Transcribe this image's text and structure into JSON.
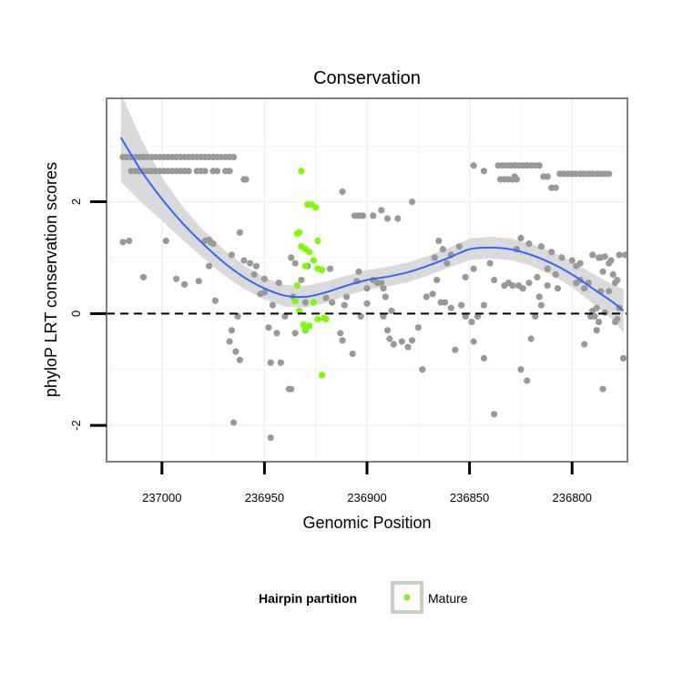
{
  "chart_data": {
    "type": "scatter",
    "title": "Conservation",
    "xlabel": "Genomic Position",
    "ylabel": "phyloP LRT conservation scores",
    "x_reversed": true,
    "xlim": [
      237027,
      236773
    ],
    "ylim": [
      -2.65,
      3.85
    ],
    "x_ticks": [
      237000,
      236950,
      236900,
      236850,
      236800
    ],
    "x_tick_labels": [
      "237000",
      "236950",
      "236900",
      "236850",
      "236800"
    ],
    "y_ticks": [
      -2,
      0,
      2
    ],
    "y_tick_labels": [
      "-2",
      "0",
      "2"
    ],
    "grid": true,
    "reference_line": {
      "y": 0,
      "style": "dashed"
    },
    "legend": {
      "title": "Hairpin partition",
      "entries": [
        {
          "label": "Mature",
          "color": "#7cfc00"
        }
      ],
      "placement": "bottom"
    },
    "colors": {
      "other": "#999999",
      "mature": "#7cfc00",
      "smooth": "#3366ff",
      "band": "#d3d3d3"
    },
    "series": [
      {
        "role": "other",
        "points": [
          [
            237019,
            2.8
          ],
          [
            237017,
            2.8
          ],
          [
            237015,
            2.8
          ],
          [
            237013,
            2.8
          ],
          [
            237011,
            2.8
          ],
          [
            237009,
            2.8
          ],
          [
            237007,
            2.8
          ],
          [
            237005,
            2.8
          ],
          [
            237003,
            2.8
          ],
          [
            237001,
            2.8
          ],
          [
            236999,
            2.8
          ],
          [
            236997,
            2.8
          ],
          [
            236995,
            2.8
          ],
          [
            236993,
            2.8
          ],
          [
            236991,
            2.8
          ],
          [
            236989,
            2.8
          ],
          [
            236987,
            2.8
          ],
          [
            236985,
            2.8
          ],
          [
            236983,
            2.8
          ],
          [
            236981,
            2.8
          ],
          [
            236979,
            2.8
          ],
          [
            236977,
            2.8
          ],
          [
            236975,
            2.8
          ],
          [
            236973,
            2.8
          ],
          [
            236971,
            2.8
          ],
          [
            236969,
            2.8
          ],
          [
            236967,
            2.8
          ],
          [
            236965,
            2.8
          ],
          [
            237015,
            2.55
          ],
          [
            237013,
            2.55
          ],
          [
            237011,
            2.55
          ],
          [
            237009,
            2.55
          ],
          [
            237007,
            2.55
          ],
          [
            237005,
            2.55
          ],
          [
            237003,
            2.55
          ],
          [
            237001,
            2.55
          ],
          [
            236999,
            2.55
          ],
          [
            236997,
            2.55
          ],
          [
            236995,
            2.55
          ],
          [
            236993,
            2.55
          ],
          [
            236991,
            2.55
          ],
          [
            236989,
            2.55
          ],
          [
            236987,
            2.55
          ],
          [
            236983,
            2.55
          ],
          [
            236981,
            2.55
          ],
          [
            236979,
            2.55
          ],
          [
            236975,
            2.55
          ],
          [
            236973,
            2.55
          ],
          [
            236969,
            2.55
          ],
          [
            236967,
            2.55
          ],
          [
            236960,
            2.4
          ],
          [
            236959,
            2.4
          ],
          [
            237019,
            1.28
          ],
          [
            237016,
            1.3
          ],
          [
            236998,
            1.3
          ],
          [
            236979,
            1.3
          ],
          [
            236976,
            1.27
          ],
          [
            236977,
            1.32
          ],
          [
            236962,
            1.45
          ],
          [
            236975,
            1.25
          ],
          [
            237009,
            0.65
          ],
          [
            236993,
            0.62
          ],
          [
            236989,
            0.52
          ],
          [
            236982,
            0.58
          ],
          [
            236977,
            0.85
          ],
          [
            236966,
            1.05
          ],
          [
            236960,
            0.95
          ],
          [
            236955,
            0.7
          ],
          [
            236950,
            0.62
          ],
          [
            236954,
            0.85
          ],
          [
            236957,
            0.9
          ],
          [
            236974,
            0.23
          ],
          [
            236937,
            1.0
          ],
          [
            236935,
            0.9
          ],
          [
            236932,
            0.6
          ],
          [
            236929,
            0.85
          ],
          [
            236950,
            0.38
          ],
          [
            236946,
            0.15
          ],
          [
            236948,
            -0.25
          ],
          [
            236944,
            -0.35
          ],
          [
            236940,
            -0.05
          ],
          [
            236952,
            0.35
          ],
          [
            236963,
            -0.05
          ],
          [
            236964,
            -0.68
          ],
          [
            236962,
            -0.83
          ],
          [
            236967,
            -0.5
          ],
          [
            236966,
            -0.3
          ],
          [
            236947,
            -0.88
          ],
          [
            236942,
            -0.88
          ],
          [
            236938,
            -1.35
          ],
          [
            236937,
            -1.35
          ],
          [
            236947,
            -2.22
          ],
          [
            236965,
            -1.95
          ],
          [
            236943,
            0.55
          ],
          [
            236936,
            0.3
          ],
          [
            236935,
            -0.35
          ],
          [
            236930,
            0.2
          ],
          [
            236930,
            -0.3
          ],
          [
            236920,
            0.28
          ],
          [
            236918,
            0.8
          ],
          [
            236917,
            0.2
          ],
          [
            236913,
            -0.35
          ],
          [
            236912,
            -0.48
          ],
          [
            236911,
            0.15
          ],
          [
            236907,
            -0.72
          ],
          [
            236903,
            -0.05
          ],
          [
            236900,
            0.18
          ],
          [
            236897,
            0.6
          ],
          [
            236895,
            0.55
          ],
          [
            236893,
            0.55
          ],
          [
            236892,
            0.45
          ],
          [
            236891,
            0.3
          ],
          [
            236888,
            0.05
          ],
          [
            236910,
            0.3
          ],
          [
            236905,
            0.58
          ],
          [
            236904,
            0.75
          ],
          [
            236900,
            0.45
          ],
          [
            236912,
            2.18
          ],
          [
            236906,
            1.75
          ],
          [
            236904,
            1.75
          ],
          [
            236902,
            1.75
          ],
          [
            236897,
            1.75
          ],
          [
            236893,
            1.85
          ],
          [
            236890,
            1.7
          ],
          [
            236885,
            1.7
          ],
          [
            236878,
            2.0
          ],
          [
            236892,
            -0.05
          ],
          [
            236890,
            -0.3
          ],
          [
            236889,
            -0.45
          ],
          [
            236887,
            -0.55
          ],
          [
            236883,
            -0.5
          ],
          [
            236880,
            -0.6
          ],
          [
            236878,
            -0.48
          ],
          [
            236875,
            -0.25
          ],
          [
            236873,
            -1.0
          ],
          [
            236871,
            0.3
          ],
          [
            236868,
            0.35
          ],
          [
            236866,
            0.6
          ],
          [
            236864,
            0.2
          ],
          [
            236862,
            0.2
          ],
          [
            236859,
            0.1
          ],
          [
            236857,
            -0.65
          ],
          [
            236854,
            0.15
          ],
          [
            236852,
            -0.05
          ],
          [
            236849,
            -0.15
          ],
          [
            236848,
            -0.5
          ],
          [
            236846,
            -0.05
          ],
          [
            236843,
            0.15
          ],
          [
            236840,
            0.9
          ],
          [
            236838,
            0.6
          ],
          [
            236867,
            1.0
          ],
          [
            236865,
            1.3
          ],
          [
            236863,
            1.15
          ],
          [
            236861,
            0.9
          ],
          [
            236859,
            1.05
          ],
          [
            236855,
            1.2
          ],
          [
            236852,
            0.65
          ],
          [
            236848,
            0.8
          ],
          [
            236848,
            2.65
          ],
          [
            236843,
            2.55
          ],
          [
            236836,
            2.65
          ],
          [
            236834,
            2.65
          ],
          [
            236832,
            2.65
          ],
          [
            236830,
            2.65
          ],
          [
            236828,
            2.65
          ],
          [
            236826,
            2.65
          ],
          [
            236824,
            2.65
          ],
          [
            236835,
            2.4
          ],
          [
            236833,
            2.4
          ],
          [
            236831,
            2.4
          ],
          [
            236829,
            2.4
          ],
          [
            236827,
            2.4
          ],
          [
            236843,
            -0.8
          ],
          [
            236838,
            -1.8
          ],
          [
            236825,
            -1.0
          ],
          [
            236822,
            -1.2
          ],
          [
            236824,
            0.45
          ],
          [
            236821,
            0.55
          ],
          [
            236817,
            0.65
          ],
          [
            236812,
            0.8
          ],
          [
            236808,
            0.7
          ],
          [
            236833,
            0.5
          ],
          [
            236831,
            0.55
          ],
          [
            236829,
            0.5
          ],
          [
            236826,
            0.5
          ],
          [
            236824,
            0.45
          ],
          [
            236818,
            -0.05
          ],
          [
            236816,
            0.3
          ],
          [
            236812,
            0.5
          ],
          [
            236807,
            0.45
          ],
          [
            236820,
            -0.45
          ],
          [
            236815,
            0.15
          ],
          [
            236798,
            0.55
          ],
          [
            236796,
            0.6
          ],
          [
            236794,
            0.45
          ],
          [
            236790,
            0.05
          ],
          [
            236788,
            -0.3
          ],
          [
            236785,
            0.75
          ],
          [
            236827,
            1.15
          ],
          [
            236825,
            1.35
          ],
          [
            236821,
            1.25
          ],
          [
            236815,
            1.2
          ],
          [
            236810,
            1.1
          ],
          [
            236805,
            1.0
          ],
          [
            236800,
            0.95
          ],
          [
            236798,
            0.85
          ],
          [
            236796,
            0.9
          ],
          [
            236790,
            1.05
          ],
          [
            236787,
            1.0
          ],
          [
            236782,
            0.4
          ],
          [
            236780,
            0.7
          ],
          [
            236777,
            1.05
          ],
          [
            236828,
            2.45
          ],
          [
            236822,
            2.65
          ],
          [
            236820,
            2.65
          ],
          [
            236818,
            2.65
          ],
          [
            236816,
            2.65
          ],
          [
            236814,
            2.45
          ],
          [
            236812,
            2.45
          ],
          [
            236810,
            2.25
          ],
          [
            236808,
            2.25
          ],
          [
            236806,
            2.5
          ],
          [
            236804,
            2.5
          ],
          [
            236802,
            2.5
          ],
          [
            236800,
            2.5
          ],
          [
            236798,
            2.5
          ],
          [
            236796,
            2.5
          ],
          [
            236794,
            2.5
          ],
          [
            236792,
            2.5
          ],
          [
            236790,
            2.5
          ],
          [
            236788,
            2.5
          ],
          [
            236786,
            2.5
          ],
          [
            236784,
            2.5
          ],
          [
            236782,
            2.5
          ],
          [
            236788,
            0.1
          ],
          [
            236786,
            0.4
          ],
          [
            236784,
            0.02
          ],
          [
            236792,
            0.55
          ],
          [
            236786,
            1.0
          ],
          [
            236784,
            1.02
          ],
          [
            236782,
            0.9
          ],
          [
            236781,
            0.95
          ],
          [
            236779,
            0.55
          ],
          [
            236778,
            0.6
          ],
          [
            236794,
            -0.55
          ],
          [
            236791,
            -0.05
          ],
          [
            236789,
            -0.05
          ],
          [
            236787,
            -0.15
          ],
          [
            236785,
            -1.35
          ],
          [
            236779,
            -0.15
          ],
          [
            236778,
            -0.1
          ],
          [
            236777,
            0.1
          ],
          [
            236775,
            -0.8
          ],
          [
            236774,
            1.05
          ]
        ]
      },
      {
        "role": "mature",
        "name": "Mature",
        "points": [
          [
            236932,
            2.55
          ],
          [
            236929,
            1.95
          ],
          [
            236927,
            1.95
          ],
          [
            236925,
            1.9
          ],
          [
            236924,
            1.3
          ],
          [
            236933,
            1.45
          ],
          [
            236934,
            1.43
          ],
          [
            236932,
            1.2
          ],
          [
            236930,
            1.15
          ],
          [
            236928,
            1.1
          ],
          [
            236926,
            0.95
          ],
          [
            236924,
            0.8
          ],
          [
            236922,
            0.78
          ],
          [
            236930,
            0.85
          ],
          [
            236935,
            0.22
          ],
          [
            236933,
            0.05
          ],
          [
            236934,
            0.5
          ],
          [
            236931,
            -0.2
          ],
          [
            236930,
            -0.28
          ],
          [
            236928,
            -0.22
          ],
          [
            236926,
            0.2
          ],
          [
            236924,
            -0.1
          ],
          [
            236921,
            -0.08
          ],
          [
            236920,
            -0.1
          ],
          [
            236922,
            -1.1
          ]
        ]
      }
    ],
    "smooth": {
      "x": [
        237020,
        237010,
        237000,
        236990,
        236980,
        236970,
        236960,
        236950,
        236940,
        236930,
        236920,
        236910,
        236900,
        236890,
        236880,
        236870,
        236860,
        236850,
        236840,
        236830,
        236820,
        236810,
        236800,
        236790,
        236780,
        236775
      ],
      "y": [
        3.15,
        2.55,
        2.05,
        1.62,
        1.25,
        0.92,
        0.65,
        0.45,
        0.32,
        0.3,
        0.38,
        0.5,
        0.6,
        0.66,
        0.74,
        0.86,
        1.0,
        1.15,
        1.18,
        1.15,
        1.05,
        0.9,
        0.7,
        0.45,
        0.2,
        0.05
      ],
      "se": [
        0.45,
        0.32,
        0.22,
        0.17,
        0.14,
        0.13,
        0.12,
        0.11,
        0.11,
        0.11,
        0.11,
        0.1,
        0.1,
        0.1,
        0.1,
        0.1,
        0.1,
        0.11,
        0.11,
        0.11,
        0.11,
        0.12,
        0.13,
        0.15,
        0.18,
        0.22
      ]
    }
  }
}
